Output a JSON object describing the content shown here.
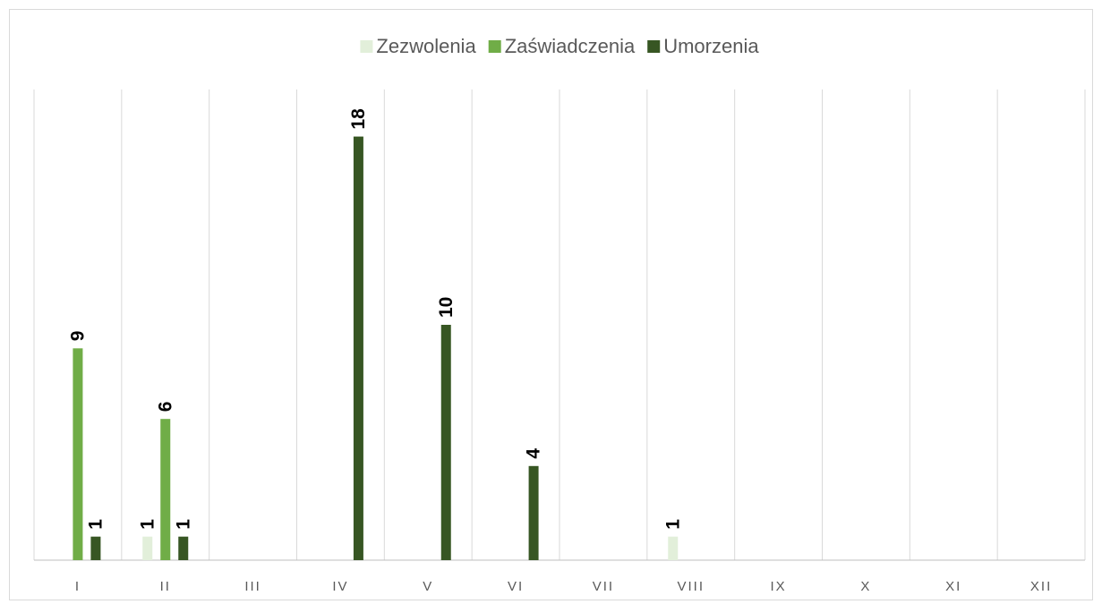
{
  "chart_data": {
    "type": "bar",
    "categories": [
      "I",
      "II",
      "III",
      "IV",
      "V",
      "VI",
      "VII",
      "VIII",
      "IX",
      "X",
      "XI",
      "XII"
    ],
    "series": [
      {
        "name": "Zezwolenia",
        "color": "#e2efda",
        "values": [
          null,
          1,
          null,
          null,
          null,
          null,
          null,
          1,
          null,
          null,
          null,
          null
        ]
      },
      {
        "name": "Zaświadczenia",
        "color": "#70ad47",
        "values": [
          9,
          6,
          null,
          null,
          null,
          null,
          null,
          null,
          null,
          null,
          null,
          null
        ]
      },
      {
        "name": "Umorzenia",
        "color": "#375623",
        "values": [
          1,
          1,
          null,
          18,
          10,
          4,
          null,
          null,
          null,
          null,
          null,
          null
        ]
      }
    ],
    "ylim": [
      0,
      20
    ],
    "legend": "top"
  }
}
